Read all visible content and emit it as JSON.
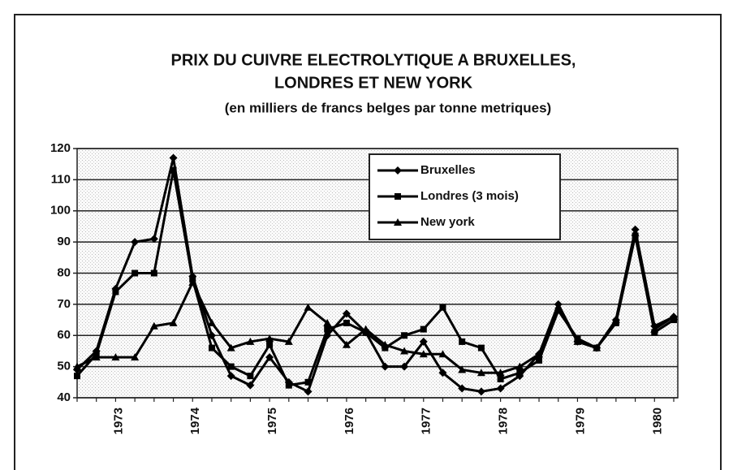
{
  "chart_data": {
    "type": "line",
    "title": [
      "PRIX DU CUIVRE ELECTROLYTIQUE A BRUXELLES,",
      "LONDRES ET NEW YORK"
    ],
    "subtitle": "(en milliers de francs belges par tonne metriques)",
    "categories": [
      null,
      null,
      "1973",
      null,
      null,
      null,
      "1974",
      null,
      null,
      null,
      "1975",
      null,
      null,
      null,
      "1976",
      null,
      null,
      null,
      "1977",
      null,
      null,
      null,
      "1978",
      null,
      null,
      null,
      "1979",
      null,
      null,
      null,
      "1980",
      null
    ],
    "series": [
      {
        "name": "Bruxelles",
        "color": "#000000",
        "marker": "diamond",
        "values": [
          49,
          55,
          75,
          90,
          91,
          117,
          79,
          60,
          47,
          44,
          53,
          45,
          42,
          60,
          67,
          61,
          50,
          50,
          58,
          48,
          43,
          42,
          43,
          47,
          54,
          70,
          58,
          56,
          65,
          94,
          63,
          66
        ]
      },
      {
        "name": "Londres (3 mois)",
        "color": "#000000",
        "marker": "square",
        "values": [
          47,
          54,
          74,
          80,
          80,
          113,
          78,
          56,
          50,
          47,
          57,
          44,
          45,
          62,
          64,
          61,
          56,
          60,
          62,
          69,
          58,
          56,
          46,
          48,
          52,
          68,
          59,
          56,
          64,
          92,
          61,
          65
        ]
      },
      {
        "name": "New york",
        "color": "#000000",
        "marker": "triangle",
        "values": [
          50,
          53,
          53,
          53,
          63,
          64,
          77,
          64,
          56,
          58,
          59,
          58,
          69,
          64,
          57,
          62,
          57,
          55,
          54,
          54,
          49,
          48,
          48,
          50,
          54,
          69,
          58,
          56,
          65,
          93,
          62,
          66
        ]
      }
    ],
    "ylim": [
      40,
      120
    ],
    "yticks": [
      40,
      50,
      60,
      70,
      80,
      90,
      100,
      110,
      120
    ],
    "grid": true,
    "legend": "top-right"
  }
}
